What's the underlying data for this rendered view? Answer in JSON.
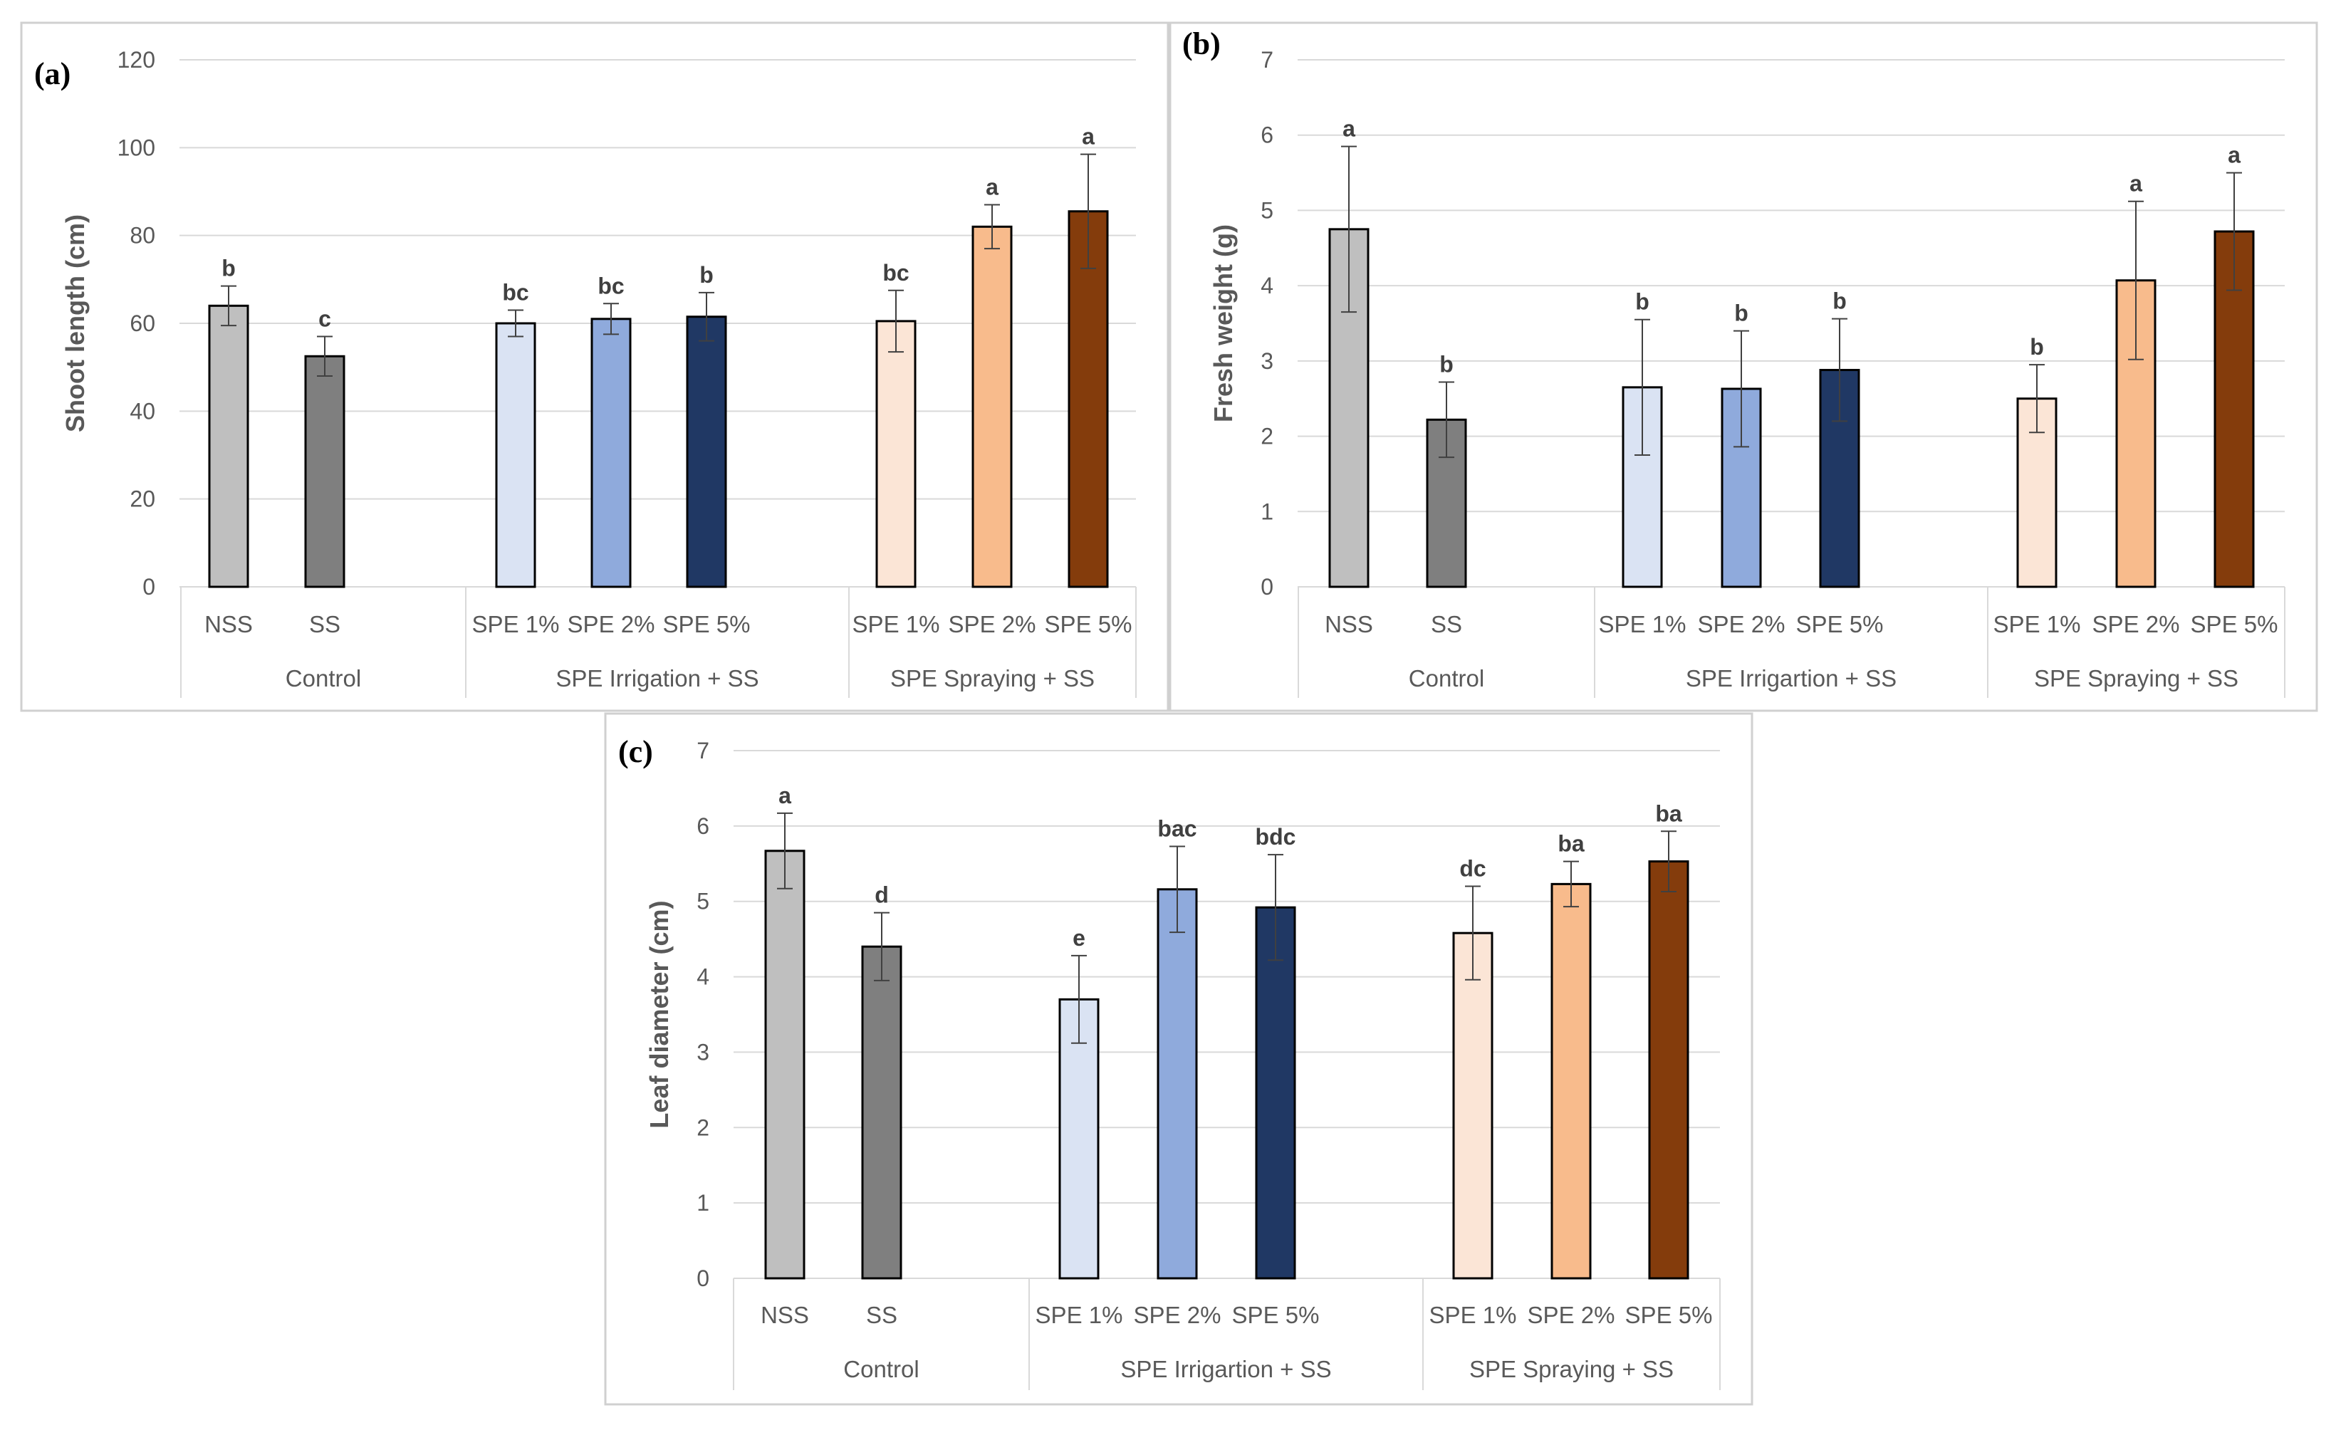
{
  "chart_data": [
    {
      "id": "a",
      "type": "bar",
      "panel_label": "(a)",
      "ylabel": "Shoot length (cm)",
      "ylim": [
        0,
        120
      ],
      "yticks": [
        0,
        20,
        40,
        60,
        80,
        100,
        120
      ],
      "groups": [
        {
          "label": "Control",
          "size": 2
        },
        {
          "label": "SPE Irrigation + SS",
          "size": 3
        },
        {
          "label": "SPE Spraying + SS",
          "size": 3
        }
      ],
      "categories": [
        "NSS",
        "SS",
        "SPE 1%",
        "SPE 2%",
        "SPE 5%",
        "SPE 1%",
        "SPE 2%",
        "SPE 5%"
      ],
      "values": [
        64,
        52.5,
        60,
        61,
        61.5,
        60.5,
        82,
        85.5
      ],
      "errors": [
        4.5,
        4.5,
        3,
        3.5,
        5.5,
        7,
        5,
        13
      ],
      "letters": [
        "b",
        "c",
        "bc",
        "bc",
        "b",
        "bc",
        "a",
        "a"
      ],
      "colors": [
        "#bfbfbf",
        "#7f7f7f",
        "#dae3f3",
        "#8faadc",
        "#203864",
        "#fbe5d6",
        "#f8bb8c",
        "#843c0c"
      ]
    },
    {
      "id": "b",
      "type": "bar",
      "panel_label": "(b)",
      "ylabel": "Fresh weight (g)",
      "ylim": [
        0,
        7
      ],
      "yticks": [
        0,
        1,
        2,
        3,
        4,
        5,
        6,
        7
      ],
      "groups": [
        {
          "label": "Control",
          "size": 2
        },
        {
          "label": "SPE Irrigartion + SS",
          "size": 3
        },
        {
          "label": "SPE Spraying + SS",
          "size": 3
        }
      ],
      "categories": [
        "NSS",
        "SS",
        "SPE 1%",
        "SPE 2%",
        "SPE 5%",
        "SPE 1%",
        "SPE 2%",
        "SPE 5%"
      ],
      "values": [
        4.75,
        2.22,
        2.65,
        2.63,
        2.88,
        2.5,
        4.07,
        4.72
      ],
      "errors": [
        1.1,
        0.5,
        0.9,
        0.77,
        0.68,
        0.45,
        1.05,
        0.78
      ],
      "letters": [
        "a",
        "b",
        "b",
        "b",
        "b",
        "b",
        "a",
        "a"
      ],
      "colors": [
        "#bfbfbf",
        "#7f7f7f",
        "#dae3f3",
        "#8faadc",
        "#203864",
        "#fbe5d6",
        "#f8bb8c",
        "#843c0c"
      ]
    },
    {
      "id": "c",
      "type": "bar",
      "panel_label": "(c)",
      "ylabel": "Leaf diameter (cm)",
      "ylim": [
        0,
        7
      ],
      "yticks": [
        0,
        1,
        2,
        3,
        4,
        5,
        6,
        7
      ],
      "groups": [
        {
          "label": "Control",
          "size": 2
        },
        {
          "label": "SPE Irrigartion + SS",
          "size": 3
        },
        {
          "label": "SPE Spraying + SS",
          "size": 3
        }
      ],
      "categories": [
        "NSS",
        "SS",
        "SPE 1%",
        "SPE 2%",
        "SPE 5%",
        "SPE 1%",
        "SPE 2%",
        "SPE 5%"
      ],
      "values": [
        5.67,
        4.4,
        3.7,
        5.16,
        4.92,
        4.58,
        5.23,
        5.53
      ],
      "errors": [
        0.5,
        0.45,
        0.58,
        0.57,
        0.7,
        0.62,
        0.3,
        0.4
      ],
      "letters": [
        "a",
        "d",
        "e",
        "bac",
        "bdc",
        "dc",
        "ba",
        "ba"
      ],
      "colors": [
        "#bfbfbf",
        "#7f7f7f",
        "#dae3f3",
        "#8faadc",
        "#203864",
        "#fbe5d6",
        "#f8bb8c",
        "#843c0c"
      ]
    }
  ]
}
